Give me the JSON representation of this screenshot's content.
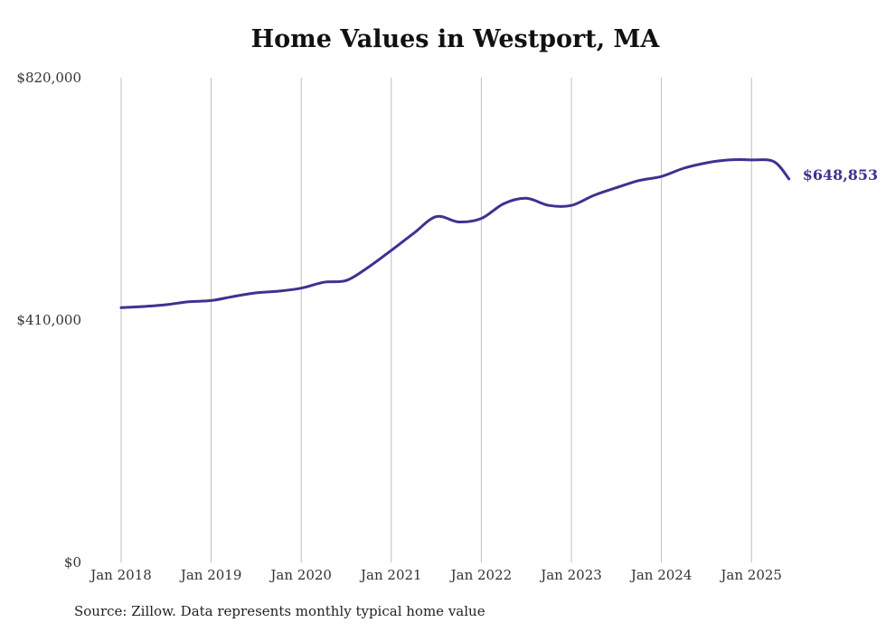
{
  "chart_data": {
    "type": "line",
    "title": "Home Values in Westport, MA",
    "source": "Source: Zillow. Data represents monthly typical home value",
    "xlabel": "",
    "ylabel": "",
    "ylim": [
      0,
      820000
    ],
    "yticks": [
      0,
      410000,
      820000
    ],
    "ytick_labels": [
      "$0",
      "$410,000",
      "$820,000"
    ],
    "xticks": [
      "2018-01",
      "2019-01",
      "2020-01",
      "2021-01",
      "2022-01",
      "2023-01",
      "2024-01",
      "2025-01"
    ],
    "xtick_labels": [
      "Jan 2018",
      "Jan 2019",
      "Jan 2020",
      "Jan 2021",
      "Jan 2022",
      "Jan 2023",
      "Jan 2024",
      "Jan 2025"
    ],
    "grid": "vertical",
    "line_color": "#3d3291",
    "end_label": "$648,853",
    "series": [
      {
        "x": [
          "2018-01",
          "2018-04",
          "2018-07",
          "2018-10",
          "2019-01",
          "2019-04",
          "2019-07",
          "2019-10",
          "2020-01",
          "2020-04",
          "2020-07",
          "2020-10",
          "2021-01",
          "2021-04",
          "2021-07",
          "2021-10",
          "2022-01",
          "2022-04",
          "2022-07",
          "2022-10",
          "2023-01",
          "2023-04",
          "2023-07",
          "2023-10",
          "2024-01",
          "2024-04",
          "2024-07",
          "2024-10",
          "2025-01",
          "2025-04",
          "2025-06"
        ],
        "values": [
          431000,
          433000,
          436000,
          441000,
          443000,
          450000,
          456000,
          459000,
          464000,
          474000,
          477000,
          500000,
          528000,
          557000,
          585000,
          576000,
          582000,
          607000,
          616000,
          604000,
          604000,
          621000,
          634000,
          646000,
          653000,
          667000,
          676000,
          681000,
          681000,
          678000,
          648853
        ]
      }
    ]
  }
}
